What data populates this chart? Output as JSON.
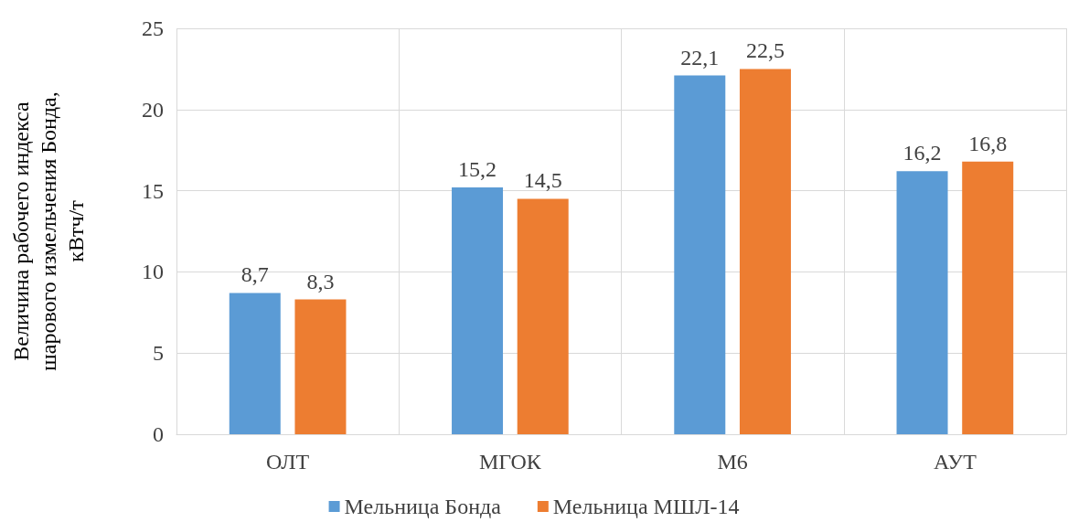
{
  "chart_data": {
    "type": "bar",
    "ylabel": "Величина рабочего индекса шарового измельчения Бонда, кВтч/т",
    "categories": [
      "ОЛТ",
      "МГОК",
      "М6",
      "АУТ"
    ],
    "series": [
      {
        "name": "Мельница Бонда",
        "color": "#5b9bd5",
        "values": [
          8.7,
          15.2,
          22.1,
          16.2
        ],
        "value_labels": [
          "8,7",
          "15,2",
          "22,1",
          "16,2"
        ]
      },
      {
        "name": "Мельница МШЛ-14",
        "color": "#ed7d31",
        "values": [
          8.3,
          14.5,
          22.5,
          16.8
        ],
        "value_labels": [
          "8,3",
          "14,5",
          "22,5",
          "16,8"
        ]
      }
    ],
    "ylim": [
      0,
      25
    ],
    "yticks": [
      0,
      5,
      10,
      15,
      20,
      25
    ],
    "grid": true,
    "legend": "bottom"
  }
}
